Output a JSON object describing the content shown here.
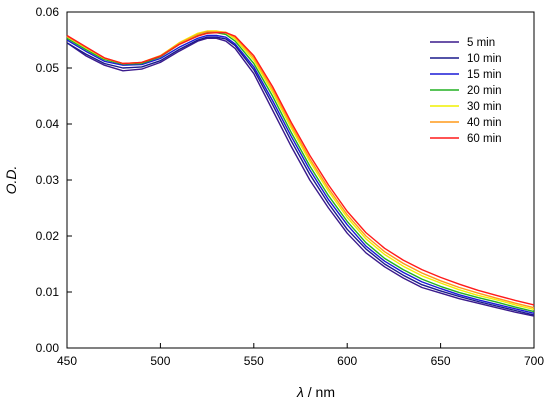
{
  "chart_data": {
    "type": "line",
    "xlabel": {
      "symbol": "λ",
      "rest": " / nm"
    },
    "ylabel": "O.D.",
    "xlim": [
      450,
      700
    ],
    "ylim": [
      0,
      0.06
    ],
    "xticks": [
      {
        "value": 450,
        "label": "450"
      },
      {
        "value": 500,
        "label": "500"
      },
      {
        "value": 550,
        "label": "550"
      },
      {
        "value": 600,
        "label": "600"
      },
      {
        "value": 650,
        "label": "650"
      },
      {
        "value": 700,
        "label": "700"
      }
    ],
    "yticks": [
      {
        "value": 0,
        "label": "0.00"
      },
      {
        "value": 0.01,
        "label": "0.01"
      },
      {
        "value": 0.02,
        "label": "0.02"
      },
      {
        "value": 0.03,
        "label": "0.03"
      },
      {
        "value": 0.04,
        "label": "0.04"
      },
      {
        "value": 0.05,
        "label": "0.05"
      },
      {
        "value": 0.06,
        "label": "0.06"
      }
    ],
    "grid": false,
    "legend_position": "top-right",
    "x": [
      450,
      460,
      470,
      480,
      490,
      500,
      510,
      520,
      525,
      530,
      535,
      540,
      550,
      560,
      570,
      580,
      590,
      600,
      610,
      620,
      630,
      640,
      650,
      660,
      670,
      680,
      690,
      700
    ],
    "series": [
      {
        "name": "5 min",
        "color": "#3a1a8c",
        "values": [
          0.0545,
          0.0522,
          0.0505,
          0.0495,
          0.0498,
          0.051,
          0.053,
          0.0548,
          0.0553,
          0.0553,
          0.0548,
          0.0535,
          0.049,
          0.0425,
          0.036,
          0.03,
          0.025,
          0.0205,
          0.017,
          0.0145,
          0.0125,
          0.0108,
          0.0098,
          0.0088,
          0.008,
          0.0072,
          0.0064,
          0.0057
        ]
      },
      {
        "name": "10 min",
        "color": "#1a1a8c",
        "values": [
          0.0545,
          0.0525,
          0.0508,
          0.05,
          0.0502,
          0.0513,
          0.0533,
          0.055,
          0.0555,
          0.0555,
          0.0552,
          0.054,
          0.0497,
          0.0435,
          0.037,
          0.031,
          0.0258,
          0.0212,
          0.0177,
          0.015,
          0.013,
          0.0113,
          0.0102,
          0.0092,
          0.0083,
          0.0075,
          0.0067,
          0.0059
        ]
      },
      {
        "name": "15 min",
        "color": "#1a1ad6",
        "values": [
          0.055,
          0.053,
          0.0512,
          0.0505,
          0.0506,
          0.0517,
          0.0537,
          0.0553,
          0.0558,
          0.0558,
          0.0555,
          0.0543,
          0.0502,
          0.0442,
          0.0378,
          0.0318,
          0.0265,
          0.022,
          0.0182,
          0.0155,
          0.0135,
          0.0118,
          0.0106,
          0.0095,
          0.0086,
          0.0078,
          0.007,
          0.0062
        ]
      },
      {
        "name": "20 min",
        "color": "#22b022",
        "values": [
          0.0553,
          0.0533,
          0.0515,
          0.0507,
          0.0508,
          0.052,
          0.0542,
          0.0558,
          0.0563,
          0.0563,
          0.056,
          0.0548,
          0.0508,
          0.045,
          0.0385,
          0.0325,
          0.0272,
          0.0226,
          0.0188,
          0.016,
          0.014,
          0.0123,
          0.011,
          0.0099,
          0.009,
          0.0082,
          0.0073,
          0.0065
        ]
      },
      {
        "name": "30 min",
        "color": "#f0f000",
        "values": [
          0.0556,
          0.0536,
          0.0517,
          0.0508,
          0.051,
          0.0522,
          0.0545,
          0.0562,
          0.0566,
          0.0566,
          0.0563,
          0.0552,
          0.0514,
          0.0457,
          0.0393,
          0.0333,
          0.028,
          0.0233,
          0.0195,
          0.0167,
          0.0146,
          0.0129,
          0.0116,
          0.0104,
          0.0094,
          0.0086,
          0.0077,
          0.0069
        ]
      },
      {
        "name": "40 min",
        "color": "#ff9a1a",
        "values": [
          0.0557,
          0.0537,
          0.0518,
          0.0508,
          0.051,
          0.0522,
          0.0544,
          0.056,
          0.0565,
          0.0565,
          0.0564,
          0.0555,
          0.0518,
          0.0462,
          0.0398,
          0.0338,
          0.0285,
          0.0238,
          0.02,
          0.0172,
          0.0151,
          0.0134,
          0.012,
          0.0108,
          0.0098,
          0.0089,
          0.008,
          0.0072
        ]
      },
      {
        "name": "60 min",
        "color": "#ff1a1a",
        "values": [
          0.0558,
          0.0538,
          0.0518,
          0.0508,
          0.051,
          0.0521,
          0.0542,
          0.0557,
          0.0562,
          0.0563,
          0.0563,
          0.0557,
          0.0522,
          0.0467,
          0.0403,
          0.0344,
          0.0291,
          0.0244,
          0.0206,
          0.0178,
          0.0157,
          0.014,
          0.0126,
          0.0114,
          0.0103,
          0.0094,
          0.0085,
          0.0077
        ]
      }
    ]
  }
}
